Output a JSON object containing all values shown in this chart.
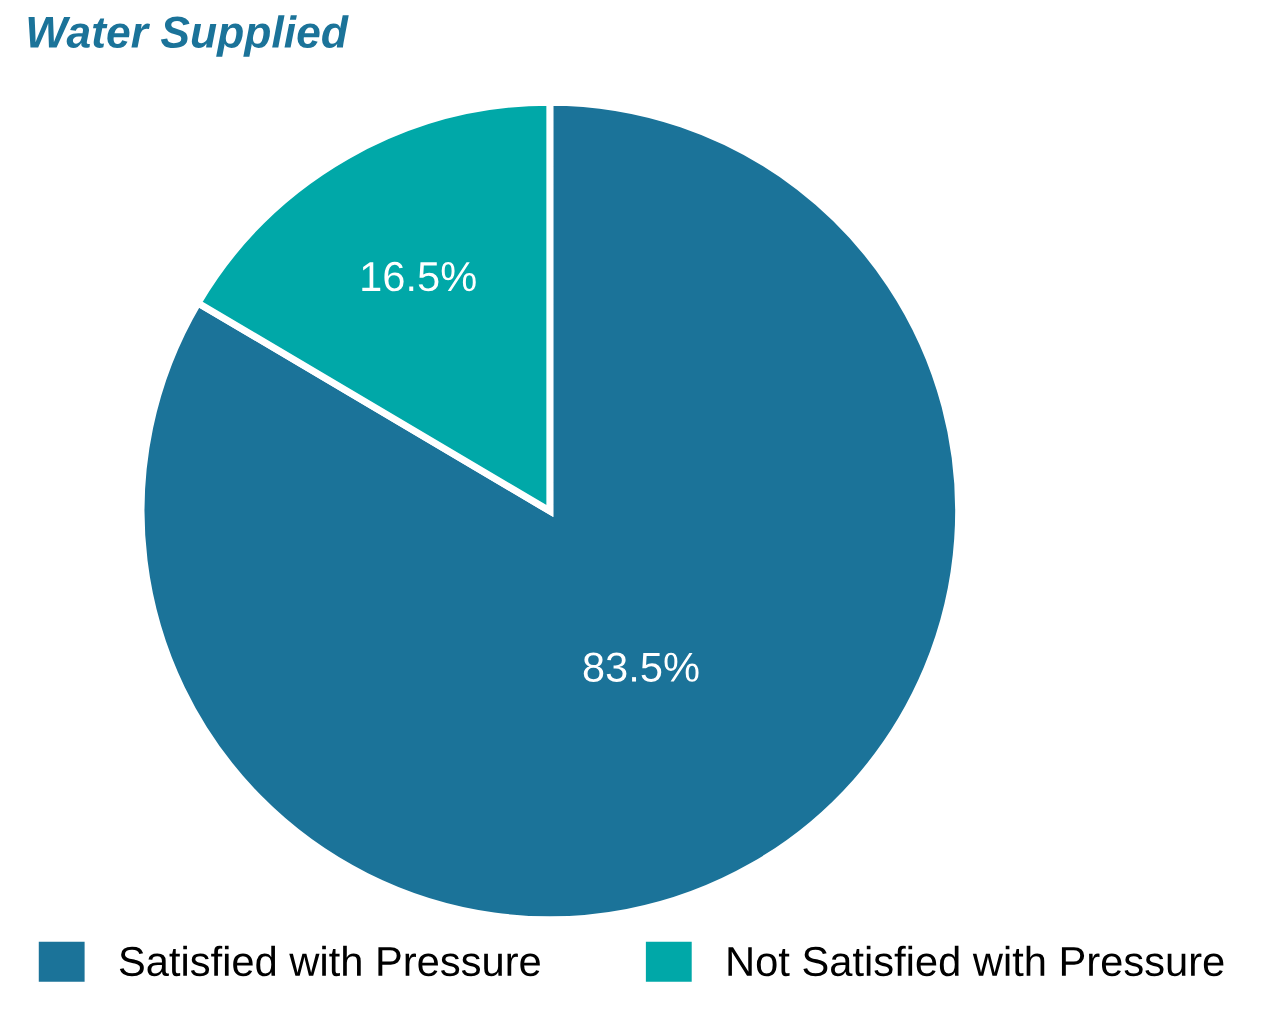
{
  "chart_data": {
    "type": "pie",
    "title": "Water Supplied",
    "categories": [
      "Satisfied with Pressure",
      "Not Satisfied with Pressure"
    ],
    "values": [
      83.5,
      16.5
    ],
    "colors": [
      "#1b7399",
      "#00a8a8"
    ],
    "value_labels": [
      "83.5%",
      "16.5%"
    ],
    "legend": "bottom"
  }
}
